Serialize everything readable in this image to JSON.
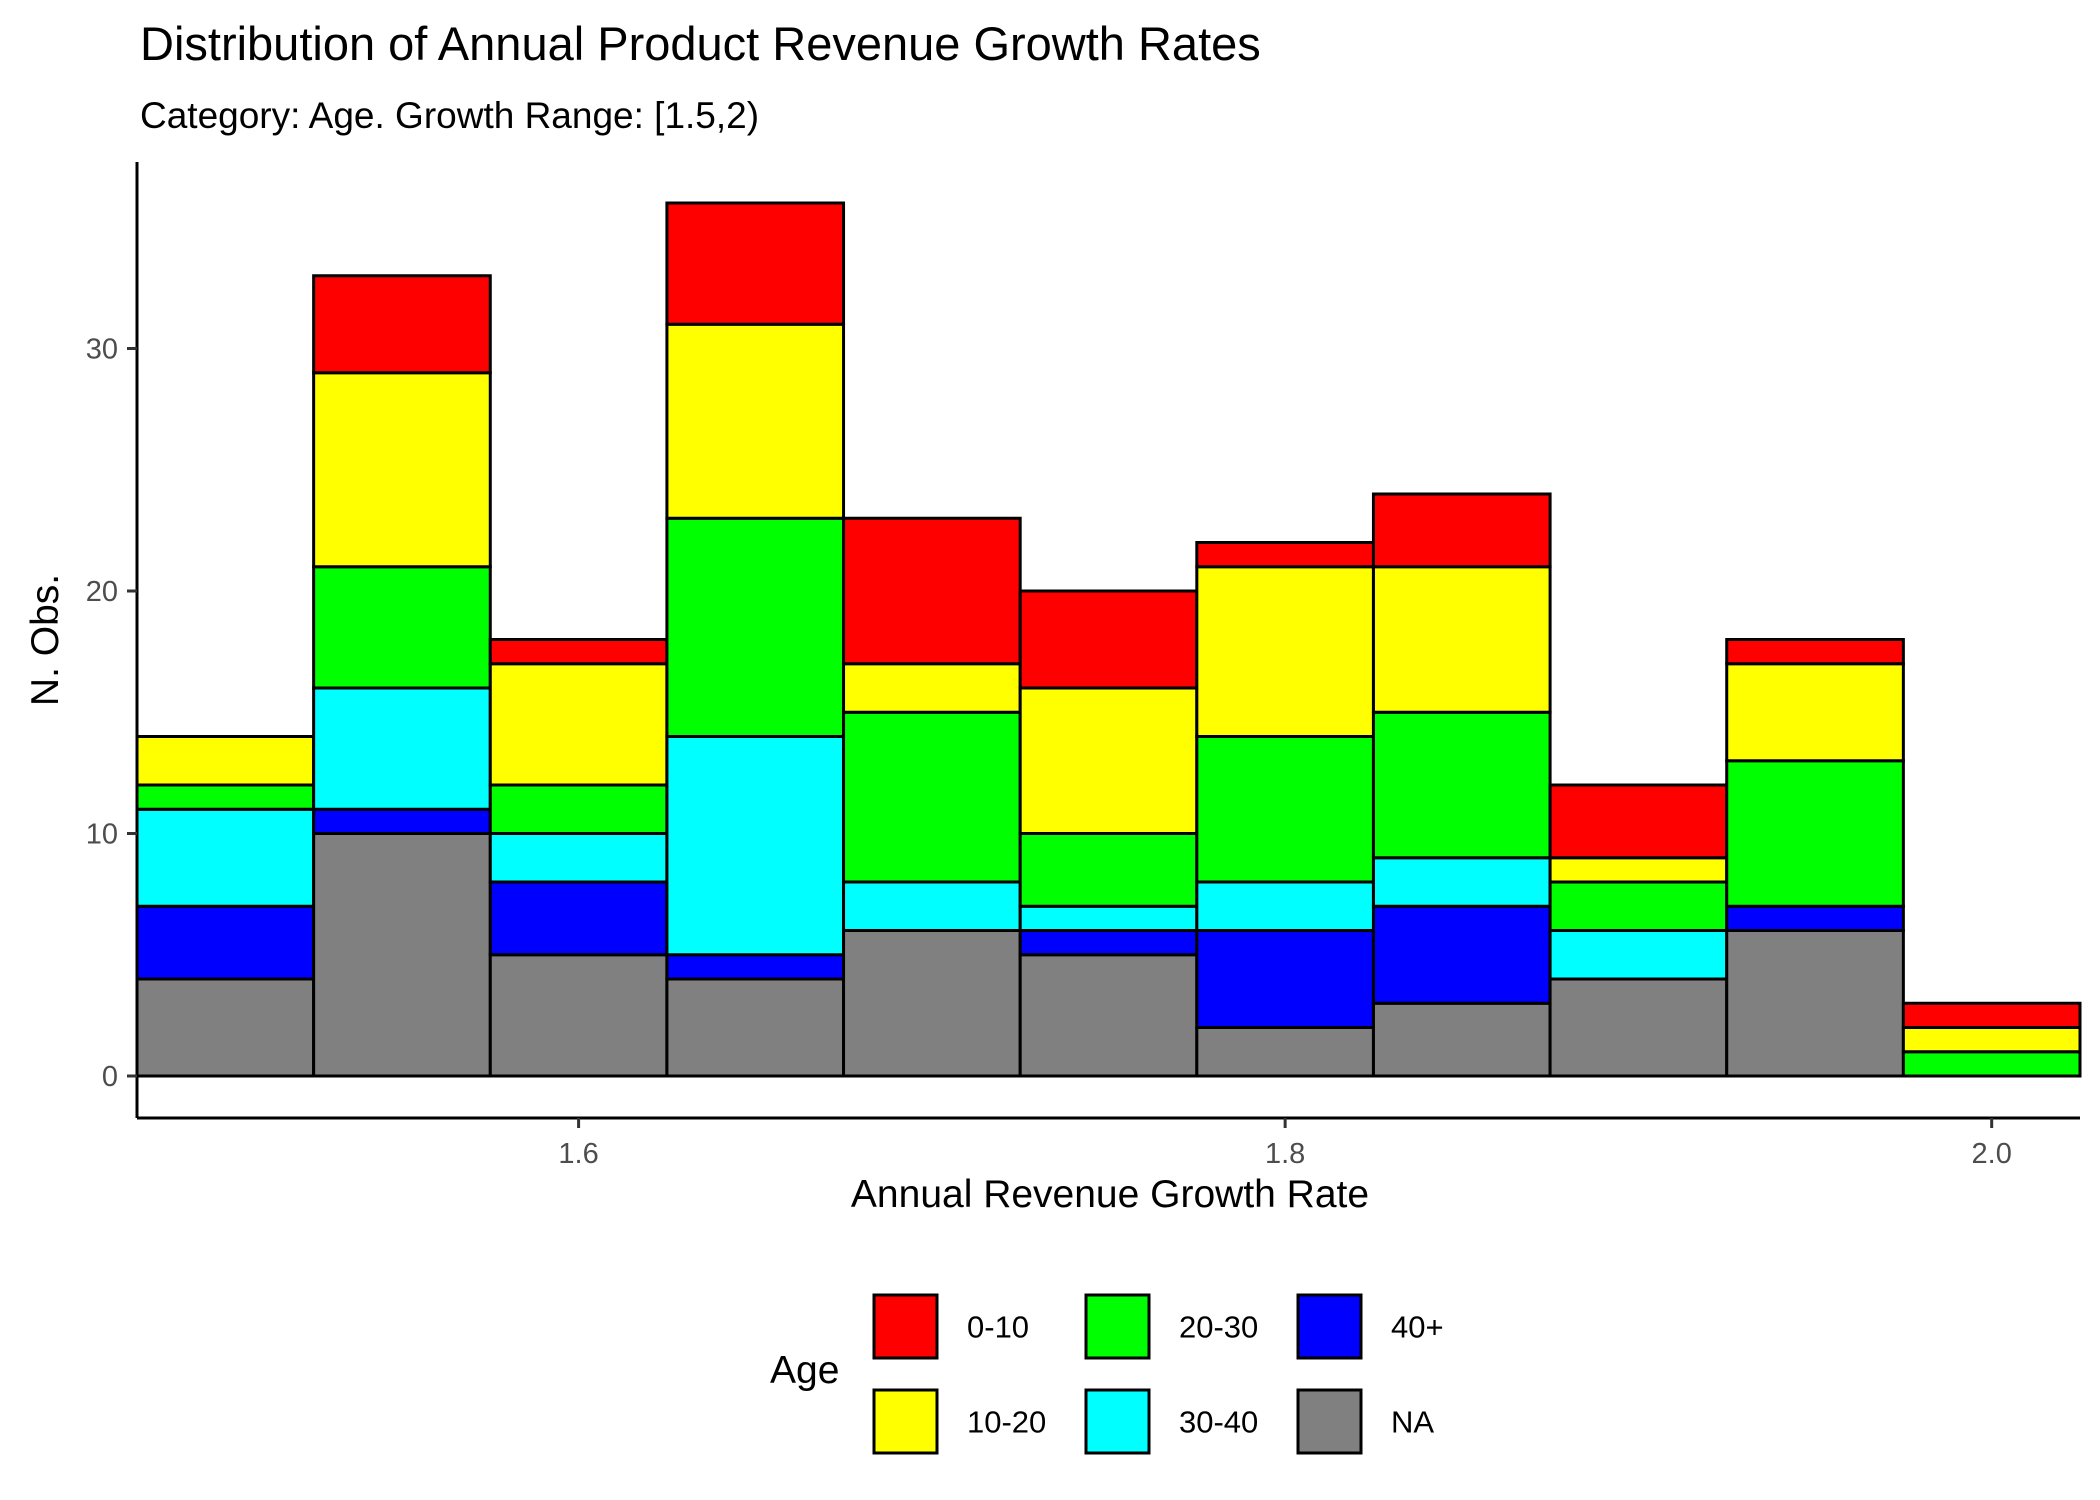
{
  "chart_data": {
    "type": "bar",
    "stacked": true,
    "title": "Distribution of Annual Product Revenue Growth Rates",
    "subtitle": "Category: Age. Growth Range: [1.5,2)",
    "xlabel": "Annual Revenue Growth Rate",
    "ylabel": "N. Obs.",
    "bin_width": 0.05,
    "bins": [
      1.5,
      1.55,
      1.6,
      1.65,
      1.7,
      1.75,
      1.8,
      1.85,
      1.9,
      1.95,
      2.0
    ],
    "xlim": [
      1.475,
      2.025
    ],
    "ylim": [
      0,
      36
    ],
    "xticks": [
      1.6,
      1.8,
      2.0
    ],
    "xtick_labels": [
      "1.6",
      "1.8",
      "2.0"
    ],
    "yticks": [
      0,
      10,
      20,
      30
    ],
    "ytick_labels": [
      "0",
      "10",
      "20",
      "30"
    ],
    "grid": false,
    "legend_title": "Age",
    "legend_position": "bottom",
    "series": [
      {
        "name": "0-10",
        "color": "#ff0000",
        "values": [
          0,
          4,
          1,
          5,
          6,
          4,
          1,
          3,
          3,
          1,
          1
        ]
      },
      {
        "name": "10-20",
        "color": "#ffff00",
        "values": [
          2,
          8,
          5,
          8,
          2,
          6,
          7,
          6,
          1,
          4,
          1
        ]
      },
      {
        "name": "20-30",
        "color": "#00ff00",
        "values": [
          1,
          5,
          2,
          9,
          7,
          3,
          6,
          6,
          2,
          6,
          1
        ]
      },
      {
        "name": "30-40",
        "color": "#00ffff",
        "values": [
          4,
          5,
          2,
          9,
          2,
          1,
          2,
          2,
          2,
          0,
          0
        ]
      },
      {
        "name": "40+",
        "color": "#0000ff",
        "values": [
          3,
          1,
          3,
          1,
          0,
          1,
          4,
          4,
          0,
          1,
          0
        ]
      },
      {
        "name": "NA",
        "color": "#808080",
        "values": [
          4,
          10,
          5,
          4,
          6,
          5,
          2,
          3,
          4,
          6,
          0
        ]
      }
    ]
  }
}
